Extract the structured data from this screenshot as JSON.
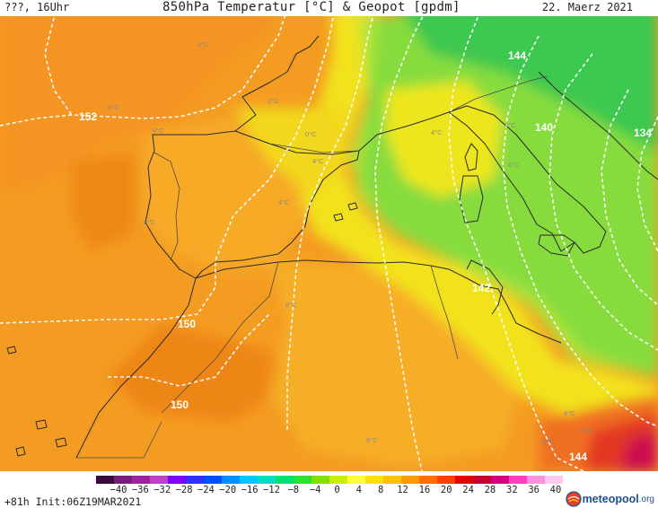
{
  "header": {
    "left_label": "???, 16Uhr",
    "title": "850hPa Temperatur [°C] & Geopot [gpdm]",
    "date": "22. Maerz 2021"
  },
  "footer": {
    "run_info": "+81h Init:06Z19MAR2021",
    "logo_text": "meteopool",
    "logo_tld": ".org"
  },
  "colorbar": {
    "ticks": [
      "−40",
      "−36",
      "−32",
      "−28",
      "−24",
      "−20",
      "−16",
      "−12",
      "−8",
      "−4",
      "0",
      "4",
      "8",
      "12",
      "16",
      "20",
      "24",
      "28",
      "32",
      "36",
      "40"
    ],
    "colors": [
      "#3a0a3a",
      "#7a1a7a",
      "#a020a0",
      "#c040c8",
      "#8000ff",
      "#3030ff",
      "#0050ff",
      "#0090ff",
      "#00c8ff",
      "#00e0c0",
      "#00e070",
      "#30e030",
      "#80e000",
      "#c8f000",
      "#ffff40",
      "#ffe000",
      "#ffc000",
      "#ff9a00",
      "#ff7000",
      "#ff4000",
      "#e80000",
      "#c00030",
      "#d00080",
      "#ff40c0",
      "#ff90e0",
      "#ffc8f0"
    ]
  },
  "map": {
    "isohypse_labels": [
      "152",
      "150",
      "150",
      "144",
      "140",
      "134",
      "142",
      "144"
    ],
    "temperature_labels": [
      "4°C",
      "2°C",
      "6°C",
      "8°C",
      "4°C",
      "0°C",
      "4°C",
      "6°C",
      "8°C",
      "4°C",
      "6°C",
      "4°C",
      "4°C",
      "6°C",
      "8°C",
      "6°C"
    ]
  },
  "colors": {
    "orange_dark": "#f08a1c",
    "orange": "#f4a024",
    "amber": "#f8b428",
    "yellow": "#f0e820",
    "lime": "#b4e63c",
    "green": "#7cdc3c",
    "green_dark": "#3cc850",
    "red": "#e84020",
    "magenta": "#d41060"
  }
}
